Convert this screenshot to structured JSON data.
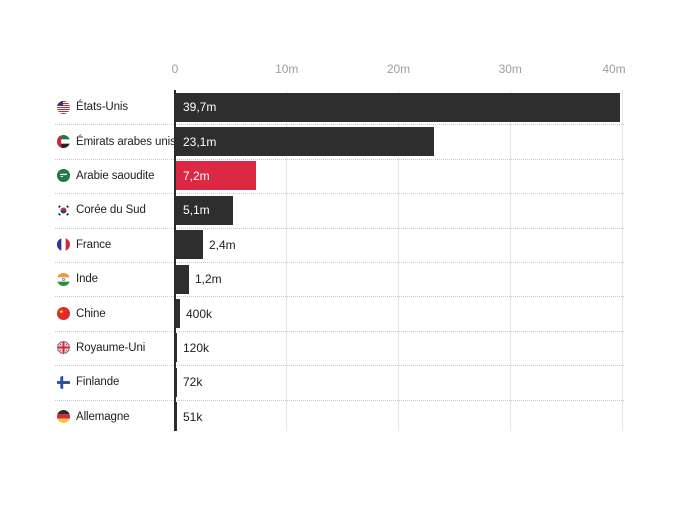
{
  "chart_data": {
    "type": "bar",
    "orientation": "horizontal",
    "categories": [
      "États-Unis",
      "Émirats arabes unis",
      "Arabie saoudite",
      "Corée du Sud",
      "France",
      "Inde",
      "Chine",
      "Royaume-Uni",
      "Finlande",
      "Allemagne"
    ],
    "values_millions": [
      39.7,
      23.1,
      7.2,
      5.1,
      2.4,
      1.2,
      0.4,
      0.12,
      0.072,
      0.051
    ],
    "value_labels": [
      "39,7m",
      "23,1m",
      "7,2m",
      "5,1m",
      "2,4m",
      "1,2m",
      "400k",
      "120k",
      "72k",
      "51k"
    ],
    "flags": [
      "us",
      "ae",
      "sa",
      "kr",
      "fr",
      "in",
      "cn",
      "gb",
      "fi",
      "de"
    ],
    "highlight_index": 2,
    "x_axis": {
      "ticks": [
        {
          "label": "0",
          "value": 0
        },
        {
          "label": "10m",
          "value": 10
        },
        {
          "label": "20m",
          "value": 20
        },
        {
          "label": "30m",
          "value": 30
        },
        {
          "label": "40m",
          "value": 40
        }
      ],
      "lim": [
        0,
        40
      ]
    },
    "layout_hints": {
      "grid_vertical": true,
      "row_separators": "dotted",
      "value_label_placement": "inside-if-long-else-outside",
      "legend": "none"
    },
    "colors": {
      "bar": "#2e2e2e",
      "highlight": "#dc2843",
      "axis_text": "#9e9e9e",
      "label_text": "#212121",
      "value_inside": "#ffffff",
      "gridline": "#e6e6e6",
      "separator": "#c9c9c9",
      "axis_line": "#2b2b2b",
      "background": "#ffffff"
    }
  }
}
